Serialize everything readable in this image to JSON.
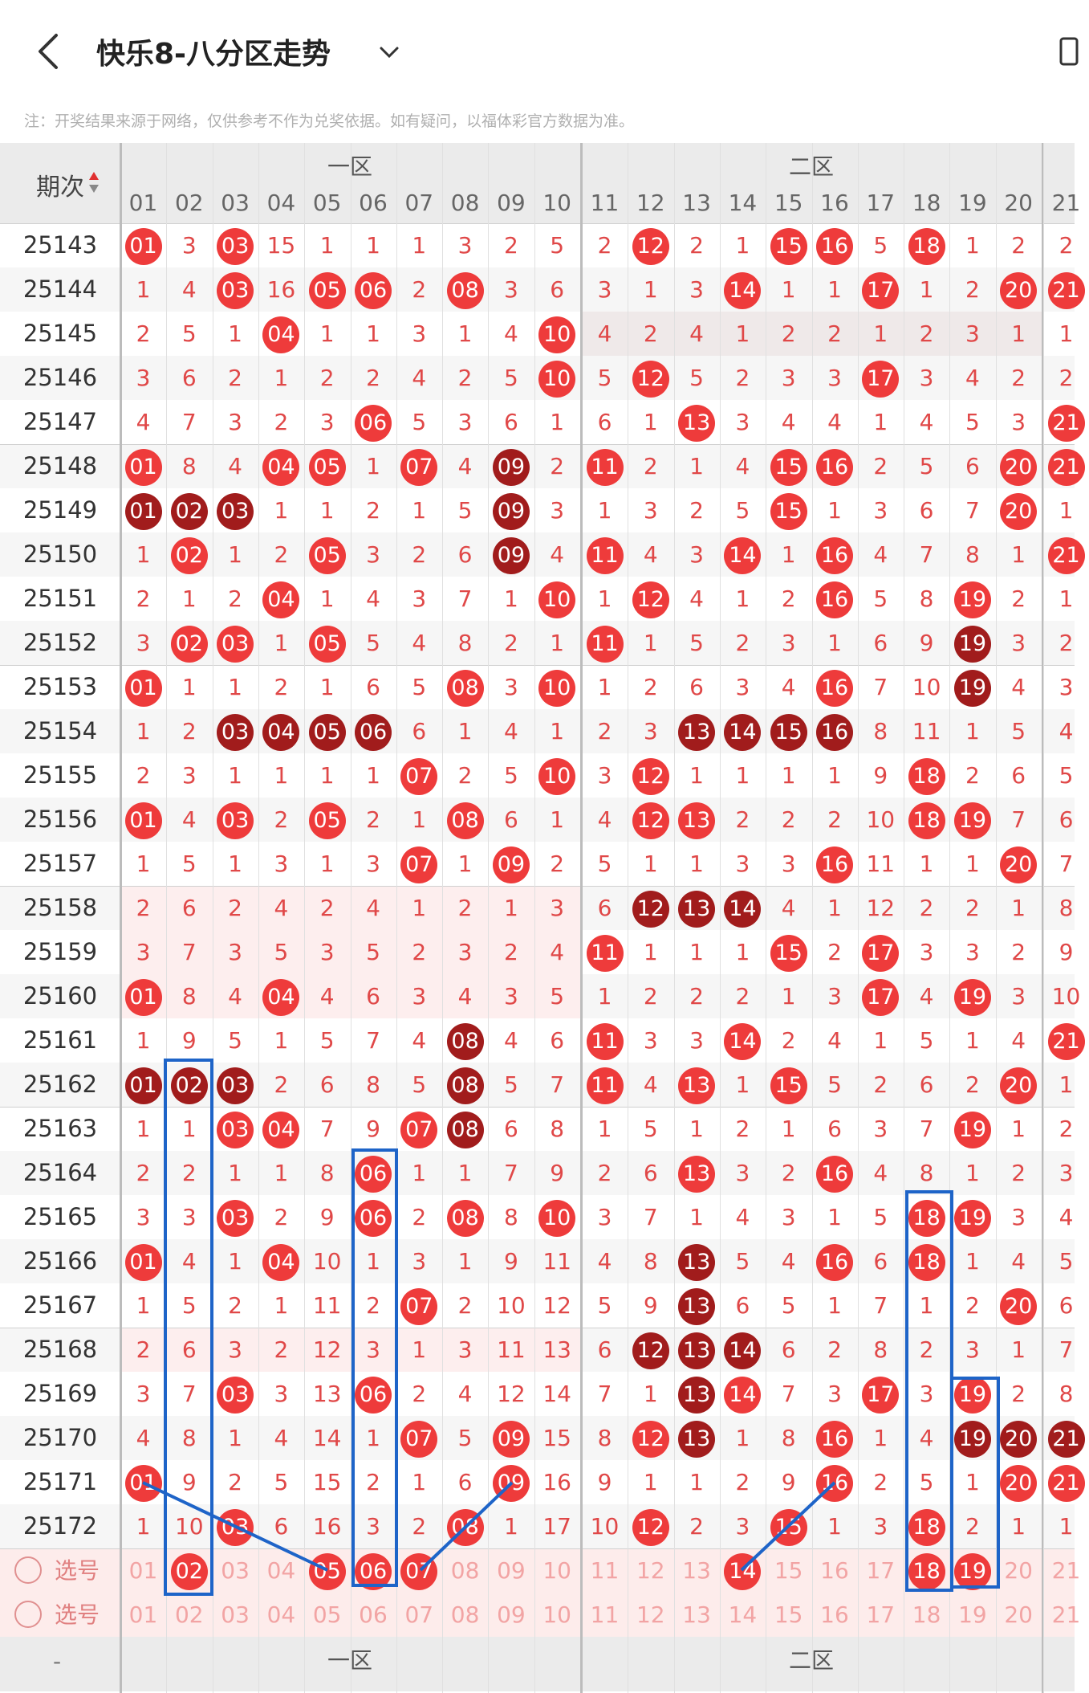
{
  "header": {
    "title": "快乐8-八分区走势",
    "notice": "注：开奖结果来源于网络，仅供参考不作为兑奖依据。如有疑问，以福体彩官方数据为准。",
    "period_label": "期次",
    "zone1": "一区",
    "zone2": "二区",
    "footer_dash": "-",
    "footer_zone1": "一区",
    "footer_zone2": "二区"
  },
  "colors": {
    "ball": "#ee3b3b",
    "ball_dark": "#a11c1c",
    "miss_text": "#e04848",
    "box": "#1e64c8"
  },
  "numbers": [
    "01",
    "02",
    "03",
    "04",
    "05",
    "06",
    "07",
    "08",
    "09",
    "10",
    "11",
    "12",
    "13",
    "14",
    "15",
    "16",
    "17",
    "18",
    "19",
    "20",
    "21"
  ],
  "rows": [
    {
      "p": "25143",
      "v": [
        "01",
        "3",
        "03",
        "15",
        "1",
        "1",
        "1",
        "3",
        "2",
        "5",
        "2",
        "12",
        "2",
        "1",
        "15",
        "16",
        "5",
        "18",
        "1",
        "2",
        "2"
      ]
    },
    {
      "p": "25144",
      "v": [
        "1",
        "4",
        "03",
        "16",
        "05",
        "06",
        "2",
        "08",
        "3",
        "6",
        "3",
        "1",
        "3",
        "14",
        "1",
        "1",
        "17",
        "1",
        "2",
        "20",
        "21"
      ]
    },
    {
      "p": "25145",
      "v": [
        "2",
        "5",
        "1",
        "04",
        "1",
        "1",
        "3",
        "1",
        "4",
        "10",
        "4",
        "2",
        "4",
        "1",
        "2",
        "2",
        "1",
        "2",
        "3",
        "1",
        "1"
      ]
    },
    {
      "p": "25146",
      "v": [
        "3",
        "6",
        "2",
        "1",
        "2",
        "2",
        "4",
        "2",
        "5",
        "10",
        "5",
        "12",
        "5",
        "2",
        "3",
        "3",
        "17",
        "3",
        "4",
        "2",
        "2"
      ]
    },
    {
      "p": "25147",
      "v": [
        "4",
        "7",
        "3",
        "2",
        "3",
        "06",
        "5",
        "3",
        "6",
        "1",
        "6",
        "1",
        "13",
        "3",
        "4",
        "4",
        "1",
        "4",
        "5",
        "3",
        "21"
      ]
    },
    {
      "p": "25148",
      "v": [
        "01",
        "8",
        "4",
        "04",
        "05",
        "1",
        "07",
        "4",
        "09",
        "2",
        "11",
        "2",
        "1",
        "4",
        "15",
        "16",
        "2",
        "5",
        "6",
        "20",
        "21"
      ]
    },
    {
      "p": "25149",
      "v": [
        "01",
        "02",
        "03",
        "1",
        "1",
        "2",
        "1",
        "5",
        "09",
        "3",
        "1",
        "3",
        "2",
        "5",
        "15",
        "1",
        "3",
        "6",
        "7",
        "20",
        "1"
      ]
    },
    {
      "p": "25150",
      "v": [
        "1",
        "02",
        "1",
        "2",
        "05",
        "3",
        "2",
        "6",
        "09",
        "4",
        "11",
        "4",
        "3",
        "14",
        "1",
        "16",
        "4",
        "7",
        "8",
        "1",
        "21"
      ]
    },
    {
      "p": "25151",
      "v": [
        "2",
        "1",
        "2",
        "04",
        "1",
        "4",
        "3",
        "7",
        "1",
        "10",
        "1",
        "12",
        "4",
        "1",
        "2",
        "16",
        "5",
        "8",
        "19",
        "2",
        "1"
      ]
    },
    {
      "p": "25152",
      "v": [
        "3",
        "02",
        "03",
        "1",
        "05",
        "5",
        "4",
        "8",
        "2",
        "1",
        "11",
        "1",
        "5",
        "2",
        "3",
        "1",
        "6",
        "9",
        "19",
        "3",
        "2"
      ]
    },
    {
      "p": "25153",
      "v": [
        "01",
        "1",
        "1",
        "2",
        "1",
        "6",
        "5",
        "08",
        "3",
        "10",
        "1",
        "2",
        "6",
        "3",
        "4",
        "16",
        "7",
        "10",
        "19",
        "4",
        "3"
      ]
    },
    {
      "p": "25154",
      "v": [
        "1",
        "2",
        "03",
        "04",
        "05",
        "06",
        "6",
        "1",
        "4",
        "1",
        "2",
        "3",
        "13",
        "14",
        "15",
        "16",
        "8",
        "11",
        "1",
        "5",
        "4"
      ]
    },
    {
      "p": "25155",
      "v": [
        "2",
        "3",
        "1",
        "1",
        "1",
        "1",
        "07",
        "2",
        "5",
        "10",
        "3",
        "12",
        "1",
        "1",
        "1",
        "1",
        "9",
        "18",
        "2",
        "6",
        "5"
      ]
    },
    {
      "p": "25156",
      "v": [
        "01",
        "4",
        "03",
        "2",
        "05",
        "2",
        "1",
        "08",
        "6",
        "1",
        "4",
        "12",
        "13",
        "2",
        "2",
        "2",
        "10",
        "18",
        "19",
        "7",
        "6"
      ]
    },
    {
      "p": "25157",
      "v": [
        "1",
        "5",
        "1",
        "3",
        "1",
        "3",
        "07",
        "1",
        "09",
        "2",
        "5",
        "1",
        "1",
        "3",
        "3",
        "16",
        "11",
        "1",
        "1",
        "20",
        "7"
      ]
    },
    {
      "p": "25158",
      "v": [
        "2",
        "6",
        "2",
        "4",
        "2",
        "4",
        "1",
        "2",
        "1",
        "3",
        "6",
        "12",
        "13",
        "14",
        "4",
        "1",
        "12",
        "2",
        "2",
        "1",
        "8"
      ]
    },
    {
      "p": "25159",
      "v": [
        "3",
        "7",
        "3",
        "5",
        "3",
        "5",
        "2",
        "3",
        "2",
        "4",
        "11",
        "1",
        "1",
        "1",
        "15",
        "2",
        "17",
        "3",
        "3",
        "2",
        "9"
      ]
    },
    {
      "p": "25160",
      "v": [
        "01",
        "8",
        "4",
        "04",
        "4",
        "6",
        "3",
        "4",
        "3",
        "5",
        "1",
        "2",
        "2",
        "2",
        "1",
        "3",
        "17",
        "4",
        "19",
        "3",
        "10"
      ]
    },
    {
      "p": "25161",
      "v": [
        "1",
        "9",
        "5",
        "1",
        "5",
        "7",
        "4",
        "08",
        "4",
        "6",
        "11",
        "3",
        "3",
        "14",
        "2",
        "4",
        "1",
        "5",
        "1",
        "4",
        "21"
      ]
    },
    {
      "p": "25162",
      "v": [
        "01",
        "02",
        "03",
        "2",
        "6",
        "8",
        "5",
        "08",
        "5",
        "7",
        "11",
        "4",
        "13",
        "1",
        "15",
        "5",
        "2",
        "6",
        "2",
        "20",
        "1"
      ]
    },
    {
      "p": "25163",
      "v": [
        "1",
        "1",
        "03",
        "04",
        "7",
        "9",
        "07",
        "08",
        "6",
        "8",
        "1",
        "5",
        "1",
        "2",
        "1",
        "6",
        "3",
        "7",
        "19",
        "1",
        "2"
      ]
    },
    {
      "p": "25164",
      "v": [
        "2",
        "2",
        "1",
        "1",
        "8",
        "06",
        "1",
        "1",
        "7",
        "9",
        "2",
        "6",
        "13",
        "3",
        "2",
        "16",
        "4",
        "8",
        "1",
        "2",
        "3"
      ]
    },
    {
      "p": "25165",
      "v": [
        "3",
        "3",
        "03",
        "2",
        "9",
        "06",
        "2",
        "08",
        "8",
        "10",
        "3",
        "7",
        "1",
        "4",
        "3",
        "1",
        "5",
        "18",
        "19",
        "3",
        "4"
      ]
    },
    {
      "p": "25166",
      "v": [
        "01",
        "4",
        "1",
        "04",
        "10",
        "1",
        "3",
        "1",
        "9",
        "11",
        "4",
        "8",
        "13",
        "5",
        "4",
        "16",
        "6",
        "18",
        "1",
        "4",
        "5"
      ]
    },
    {
      "p": "25167",
      "v": [
        "1",
        "5",
        "2",
        "1",
        "11",
        "2",
        "07",
        "2",
        "10",
        "12",
        "5",
        "9",
        "13",
        "6",
        "5",
        "1",
        "7",
        "1",
        "2",
        "20",
        "6"
      ]
    },
    {
      "p": "25168",
      "v": [
        "2",
        "6",
        "3",
        "2",
        "12",
        "3",
        "1",
        "3",
        "11",
        "13",
        "6",
        "12",
        "13",
        "14",
        "6",
        "2",
        "8",
        "2",
        "3",
        "1",
        "7"
      ]
    },
    {
      "p": "25169",
      "v": [
        "3",
        "7",
        "03",
        "3",
        "13",
        "06",
        "2",
        "4",
        "12",
        "14",
        "7",
        "1",
        "13",
        "14",
        "7",
        "3",
        "17",
        "3",
        "19",
        "2",
        "8"
      ]
    },
    {
      "p": "25170",
      "v": [
        "4",
        "8",
        "1",
        "4",
        "14",
        "1",
        "07",
        "5",
        "09",
        "15",
        "8",
        "12",
        "13",
        "1",
        "8",
        "16",
        "1",
        "4",
        "19",
        "20",
        "21"
      ]
    },
    {
      "p": "25171",
      "v": [
        "01",
        "9",
        "2",
        "5",
        "15",
        "2",
        "1",
        "6",
        "09",
        "16",
        "9",
        "1",
        "1",
        "2",
        "9",
        "16",
        "2",
        "5",
        "1",
        "20",
        "21"
      ]
    },
    {
      "p": "25172",
      "v": [
        "1",
        "10",
        "03",
        "6",
        "16",
        "3",
        "2",
        "08",
        "1",
        "17",
        "10",
        "12",
        "2",
        "3",
        "15",
        "1",
        "3",
        "18",
        "2",
        "1",
        "1"
      ]
    }
  ],
  "dark_balls": [
    [
      5,
      "09"
    ],
    [
      6,
      "01"
    ],
    [
      6,
      "02"
    ],
    [
      6,
      "03"
    ],
    [
      6,
      "09"
    ],
    [
      7,
      "09"
    ],
    [
      9,
      "19"
    ],
    [
      10,
      "19"
    ],
    [
      11,
      "03"
    ],
    [
      11,
      "04"
    ],
    [
      11,
      "05"
    ],
    [
      11,
      "06"
    ],
    [
      11,
      "13"
    ],
    [
      11,
      "14"
    ],
    [
      11,
      "15"
    ],
    [
      11,
      "16"
    ],
    [
      15,
      "12"
    ],
    [
      15,
      "13"
    ],
    [
      15,
      "14"
    ],
    [
      18,
      "08"
    ],
    [
      19,
      "01"
    ],
    [
      19,
      "02"
    ],
    [
      19,
      "03"
    ],
    [
      19,
      "08"
    ],
    [
      20,
      "08"
    ],
    [
      23,
      "13"
    ],
    [
      24,
      "13"
    ],
    [
      25,
      "12"
    ],
    [
      25,
      "13"
    ],
    [
      25,
      "14"
    ],
    [
      26,
      "13"
    ],
    [
      27,
      "13"
    ],
    [
      27,
      "19"
    ],
    [
      27,
      "20"
    ],
    [
      27,
      "21"
    ]
  ],
  "select_rows": [
    {
      "label": "选号",
      "selected": [
        "02",
        "05",
        "06",
        "07",
        "14",
        "18",
        "19"
      ]
    },
    {
      "label": "选号",
      "selected": []
    }
  ]
}
